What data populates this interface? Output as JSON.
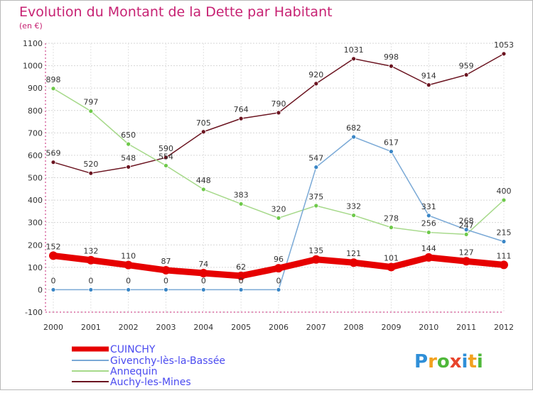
{
  "chart_data": {
    "type": "line",
    "title": "Evolution du Montant de la Dette par Habitant",
    "subtitle": "(en €)",
    "x": [
      "2000",
      "2001",
      "2002",
      "2003",
      "2004",
      "2005",
      "2006",
      "2007",
      "2008",
      "2009",
      "2010",
      "2011",
      "2012"
    ],
    "ylim": [
      -100,
      1100
    ],
    "yticks": [
      -100,
      0,
      100,
      200,
      300,
      400,
      500,
      600,
      700,
      800,
      900,
      1000,
      1100
    ],
    "grid": true,
    "legend_position": "bottom-left",
    "series": [
      {
        "name": "Auchy-les-Mines",
        "color": "#6b1420",
        "marker": "#6b1420",
        "values": [
          569,
          520,
          548,
          590,
          705,
          764,
          790,
          920,
          1031,
          998,
          914,
          959,
          1053
        ]
      },
      {
        "name": "Annequin",
        "color": "#a6d98a",
        "marker": "#6ec94a",
        "values": [
          898,
          797,
          650,
          554,
          448,
          383,
          320,
          375,
          332,
          278,
          256,
          247,
          400
        ]
      },
      {
        "name": "Givenchy-lès-la-Bassée",
        "color": "#7aa9d6",
        "marker": "#3a86c6",
        "values": [
          0,
          0,
          0,
          0,
          0,
          0,
          0,
          547,
          682,
          617,
          331,
          268,
          215
        ]
      },
      {
        "name": "CUINCHY",
        "color": "#e60000",
        "marker": "#e60000",
        "values": [
          152,
          132,
          110,
          87,
          74,
          62,
          96,
          135,
          121,
          101,
          144,
          127,
          111
        ]
      }
    ],
    "data_labels": [
      [
        "569",
        "520",
        "548",
        "590",
        "705",
        "764",
        "790",
        "920",
        "1031",
        "998",
        "914",
        "959",
        "1053"
      ],
      [
        "898",
        "797",
        "650",
        "554",
        "448",
        "383",
        "320",
        "375",
        "332",
        "278",
        "256",
        "247",
        "400"
      ],
      [
        "0",
        "0",
        "0",
        "0",
        "0",
        "0",
        "0",
        "547",
        "682",
        "617",
        "331",
        "268",
        "215"
      ],
      [
        "152",
        "132",
        "110",
        "87",
        "74",
        "62",
        "96",
        "135",
        "121",
        "101",
        "144",
        "127",
        "111"
      ]
    ],
    "legend": [
      "CUINCHY",
      "Givenchy-lès-la-Bassée",
      "Annequin",
      "Auchy-les-Mines"
    ]
  },
  "logo": {
    "text": "Proxiti"
  }
}
